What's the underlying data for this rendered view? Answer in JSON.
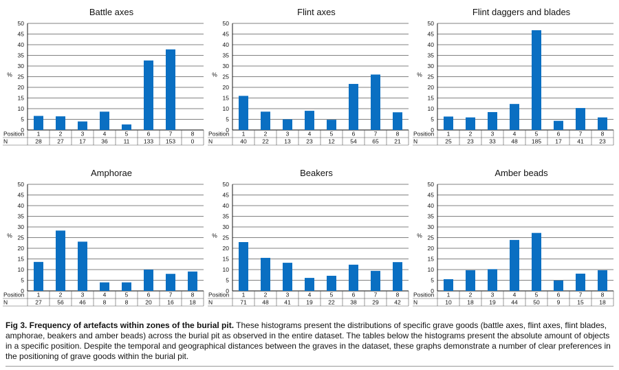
{
  "colors": {
    "bar": "#0a6fc2",
    "axis": "#000000",
    "grid": "#000000",
    "table_line": "#555555"
  },
  "chart_data": [
    {
      "type": "bar",
      "title": "Battle axes",
      "ylabel": "%",
      "ylim": [
        0,
        50
      ],
      "yticks": [
        0,
        5,
        10,
        15,
        20,
        25,
        30,
        35,
        40,
        45,
        50
      ],
      "grid": true,
      "position_label": "Position",
      "n_label": "N",
      "categories": [
        "1",
        "2",
        "3",
        "4",
        "5",
        "6",
        "7",
        "8"
      ],
      "values": [
        6.6,
        6.4,
        4.0,
        8.6,
        2.6,
        32.6,
        37.8,
        0
      ],
      "n": [
        "28",
        "27",
        "17",
        "36",
        "11",
        "133",
        "153",
        "0"
      ]
    },
    {
      "type": "bar",
      "title": "Flint axes",
      "ylabel": "%",
      "ylim": [
        0,
        50
      ],
      "yticks": [
        0,
        5,
        10,
        15,
        20,
        25,
        30,
        35,
        40,
        45,
        50
      ],
      "grid": true,
      "position_label": "Position",
      "n_label": "N",
      "categories": [
        "1",
        "2",
        "3",
        "4",
        "5",
        "6",
        "7",
        "8"
      ],
      "values": [
        16.0,
        8.6,
        5.0,
        9.0,
        4.8,
        21.6,
        26.0,
        8.3
      ],
      "n": [
        "40",
        "22",
        "13",
        "23",
        "12",
        "54",
        "65",
        "21"
      ]
    },
    {
      "type": "bar",
      "title": "Flint daggers and blades",
      "ylabel": "%",
      "ylim": [
        0,
        50
      ],
      "yticks": [
        0,
        5,
        10,
        15,
        20,
        25,
        30,
        35,
        40,
        45,
        50
      ],
      "grid": true,
      "position_label": "Position",
      "n_label": "N",
      "categories": [
        "1",
        "2",
        "3",
        "4",
        "5",
        "6",
        "7",
        "8"
      ],
      "values": [
        6.3,
        5.9,
        8.4,
        12.2,
        46.8,
        4.3,
        10.3,
        5.9
      ],
      "n": [
        "25",
        "23",
        "33",
        "48",
        "185",
        "17",
        "41",
        "23"
      ]
    },
    {
      "type": "bar",
      "title": "Amphorae",
      "ylabel": "%",
      "ylim": [
        0,
        50
      ],
      "yticks": [
        0,
        5,
        10,
        15,
        20,
        25,
        30,
        35,
        40,
        45,
        50
      ],
      "grid": true,
      "position_label": "Position",
      "n_label": "N",
      "categories": [
        "1",
        "2",
        "3",
        "4",
        "5",
        "6",
        "7",
        "8"
      ],
      "values": [
        13.6,
        28.3,
        23.1,
        4.0,
        4.0,
        10.0,
        8.0,
        9.1
      ],
      "n": [
        "27",
        "56",
        "46",
        "8",
        "8",
        "20",
        "16",
        "18"
      ]
    },
    {
      "type": "bar",
      "title": "Beakers",
      "ylabel": "%",
      "ylim": [
        0,
        50
      ],
      "yticks": [
        0,
        5,
        10,
        15,
        20,
        25,
        30,
        35,
        40,
        45,
        50
      ],
      "grid": true,
      "position_label": "Position",
      "n_label": "N",
      "categories": [
        "1",
        "2",
        "3",
        "4",
        "5",
        "6",
        "7",
        "8"
      ],
      "values": [
        22.9,
        15.5,
        13.2,
        6.1,
        7.1,
        12.3,
        9.4,
        13.5
      ],
      "n": [
        "71",
        "48",
        "41",
        "19",
        "22",
        "38",
        "29",
        "42"
      ]
    },
    {
      "type": "bar",
      "title": "Amber beads",
      "ylabel": "%",
      "ylim": [
        0,
        50
      ],
      "yticks": [
        0,
        5,
        10,
        15,
        20,
        25,
        30,
        35,
        40,
        45,
        50
      ],
      "grid": true,
      "position_label": "Position",
      "n_label": "N",
      "categories": [
        "1",
        "2",
        "3",
        "4",
        "5",
        "6",
        "7",
        "8"
      ],
      "values": [
        5.5,
        9.7,
        10.2,
        23.9,
        27.2,
        4.9,
        8.1,
        9.7
      ],
      "n": [
        "10",
        "18",
        "19",
        "44",
        "50",
        "9",
        "15",
        "18"
      ]
    }
  ],
  "caption": {
    "lead": "Fig 3. Frequency of artefacts within zones of the burial pit.",
    "body": " These histograms present the distributions of specific grave goods (battle axes, flint axes, flint blades, amphorae, beakers and amber beads) across the burial pit as observed in the entire dataset. The tables below the histograms present the absolute amount of objects in a specific position. Despite the temporal and geographical distances between the graves in the dataset, these graphs demonstrate a number of clear preferences in the positioning of grave goods within the burial pit."
  }
}
